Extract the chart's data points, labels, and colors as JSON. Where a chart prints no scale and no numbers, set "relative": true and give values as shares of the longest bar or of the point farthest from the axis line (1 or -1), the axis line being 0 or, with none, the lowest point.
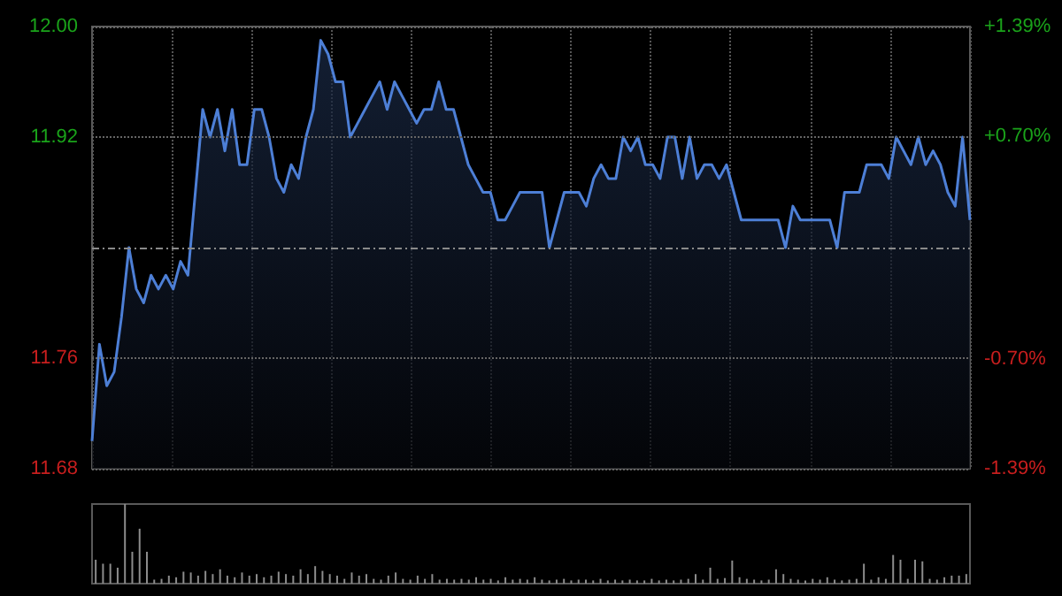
{
  "chart_data": [
    {
      "type": "area",
      "categories": [
        null,
        null,
        null,
        null,
        null,
        null,
        null,
        null,
        null,
        null,
        null,
        null,
        null,
        null,
        null,
        null,
        null,
        null,
        null,
        null,
        null,
        null,
        null,
        null,
        null,
        null,
        null,
        null,
        null,
        null,
        null,
        null,
        null,
        null,
        null,
        null,
        null,
        null,
        null,
        null,
        null,
        null,
        null,
        null,
        null,
        null,
        null,
        null,
        null,
        null,
        null,
        null,
        null,
        null,
        null,
        null,
        null,
        null,
        null,
        null,
        null,
        null,
        null,
        null,
        null,
        null,
        null,
        null,
        null,
        null,
        null,
        null,
        null,
        null,
        null,
        null,
        null,
        null,
        null,
        null,
        null,
        null,
        null,
        null,
        null,
        null,
        null,
        null,
        null,
        null,
        null,
        null,
        null,
        null,
        null,
        null,
        null,
        null,
        null,
        null,
        null,
        null,
        null,
        null,
        null,
        null,
        null,
        null,
        null,
        null,
        null,
        null,
        null,
        null,
        null,
        null,
        null,
        null,
        null,
        null
      ],
      "series": [
        {
          "color": "#4d7fd6",
          "values": [
            11.7,
            11.77,
            11.74,
            11.75,
            11.79,
            11.84,
            11.81,
            11.8,
            11.82,
            11.81,
            11.82,
            11.81,
            11.83,
            11.82,
            11.88,
            11.94,
            11.92,
            11.94,
            11.91,
            11.94,
            11.9,
            11.9,
            11.94,
            11.94,
            11.92,
            11.89,
            11.88,
            11.9,
            11.89,
            11.92,
            11.94,
            11.99,
            11.98,
            11.96,
            11.96,
            11.92,
            11.93,
            11.94,
            11.95,
            11.96,
            11.94,
            11.96,
            11.95,
            11.94,
            11.93,
            11.94,
            11.94,
            11.96,
            11.94,
            11.94,
            11.92,
            11.9,
            11.89,
            11.88,
            11.88,
            11.86,
            11.86,
            11.87,
            11.88,
            11.88,
            11.88,
            11.88,
            11.84,
            11.86,
            11.88,
            11.88,
            11.88,
            11.87,
            11.89,
            11.9,
            11.89,
            11.89,
            11.92,
            11.91,
            11.92,
            11.9,
            11.9,
            11.89,
            11.92,
            11.92,
            11.89,
            11.92,
            11.89,
            11.9,
            11.9,
            11.89,
            11.9,
            11.88,
            11.86,
            11.86,
            11.86,
            11.86,
            11.86,
            11.86,
            11.84,
            11.87,
            11.86,
            11.86,
            11.86,
            11.86,
            11.86,
            11.84,
            11.88,
            11.88,
            11.88,
            11.9,
            11.9,
            11.9,
            11.89,
            11.92,
            11.91,
            11.9,
            11.92,
            11.9,
            11.91,
            11.9,
            11.88,
            11.87,
            11.92,
            11.86
          ]
        }
      ],
      "ylim": [
        11.68,
        12.0
      ],
      "yticks": [
        11.68,
        11.76,
        11.92,
        {
          "value": 12.0,
          "label": "12.00"
        }
      ],
      "y2lim": [
        -1.39,
        1.39
      ],
      "y2ticks": [
        {
          "value": -1.39,
          "label": "-1.39%"
        },
        {
          "value": -0.7,
          "label": "-0.70%"
        },
        {
          "value": 0.7,
          "label": "+0.70%"
        },
        {
          "value": 1.39,
          "label": "+1.39%"
        }
      ],
      "ref_lines": [
        {
          "axis": "y",
          "value": 11.84,
          "color": "#8a8a8a",
          "line_style": "dashed"
        }
      ],
      "grid": true
    },
    {
      "type": "bar",
      "relative": true,
      "tick_labels": false,
      "categories": [
        null,
        null,
        null,
        null,
        null,
        null,
        null,
        null,
        null,
        null,
        null,
        null,
        null,
        null,
        null,
        null,
        null,
        null,
        null,
        null,
        null,
        null,
        null,
        null,
        null,
        null,
        null,
        null,
        null,
        null,
        null,
        null,
        null,
        null,
        null,
        null,
        null,
        null,
        null,
        null,
        null,
        null,
        null,
        null,
        null,
        null,
        null,
        null,
        null,
        null,
        null,
        null,
        null,
        null,
        null,
        null,
        null,
        null,
        null,
        null,
        null,
        null,
        null,
        null,
        null,
        null,
        null,
        null,
        null,
        null,
        null,
        null,
        null,
        null,
        null,
        null,
        null,
        null,
        null,
        null,
        null,
        null,
        null,
        null,
        null,
        null,
        null,
        null,
        null,
        null,
        null,
        null,
        null,
        null,
        null,
        null,
        null,
        null,
        null,
        null,
        null,
        null,
        null,
        null,
        null,
        null,
        null,
        null,
        null,
        null,
        null,
        null,
        null,
        null,
        null,
        null,
        null,
        null,
        null,
        null
      ],
      "series": [
        {
          "color": "#8c8c8c",
          "values": [
            0.3,
            0.25,
            0.25,
            0.2,
            1,
            0.4,
            0.69,
            0.4,
            0.05,
            0.06,
            0.1,
            0.08,
            0.15,
            0.14,
            0.1,
            0.16,
            0.12,
            0.18,
            0.1,
            0.08,
            0.14,
            0.1,
            0.12,
            0.08,
            0.1,
            0.15,
            0.12,
            0.1,
            0.18,
            0.12,
            0.22,
            0.16,
            0.12,
            0.1,
            0.06,
            0.14,
            0.1,
            0.12,
            0.06,
            0.05,
            0.1,
            0.14,
            0.06,
            0.05,
            0.1,
            0.06,
            0.12,
            0.05,
            0.06,
            0.05,
            0.06,
            0.05,
            0.08,
            0.05,
            0.06,
            0.04,
            0.08,
            0.05,
            0.06,
            0.05,
            0.08,
            0.05,
            0.04,
            0.05,
            0.06,
            0.04,
            0.05,
            0.05,
            0.04,
            0.06,
            0.04,
            0.05,
            0.04,
            0.05,
            0.04,
            0.04,
            0.06,
            0.04,
            0.05,
            0.04,
            0.05,
            0.06,
            0.12,
            0.05,
            0.2,
            0.06,
            0.07,
            0.29,
            0.08,
            0.06,
            0.05,
            0.04,
            0.05,
            0.18,
            0.12,
            0.06,
            0.05,
            0.04,
            0.06,
            0.05,
            0.08,
            0.05,
            0.04,
            0.05,
            0.06,
            0.25,
            0.05,
            0.08,
            0.06,
            0.36,
            0.3,
            0.06,
            0.3,
            0.28,
            0.06,
            0.05,
            0.08,
            0.1,
            0.1,
            0.12
          ]
        }
      ],
      "grid": false
    }
  ]
}
